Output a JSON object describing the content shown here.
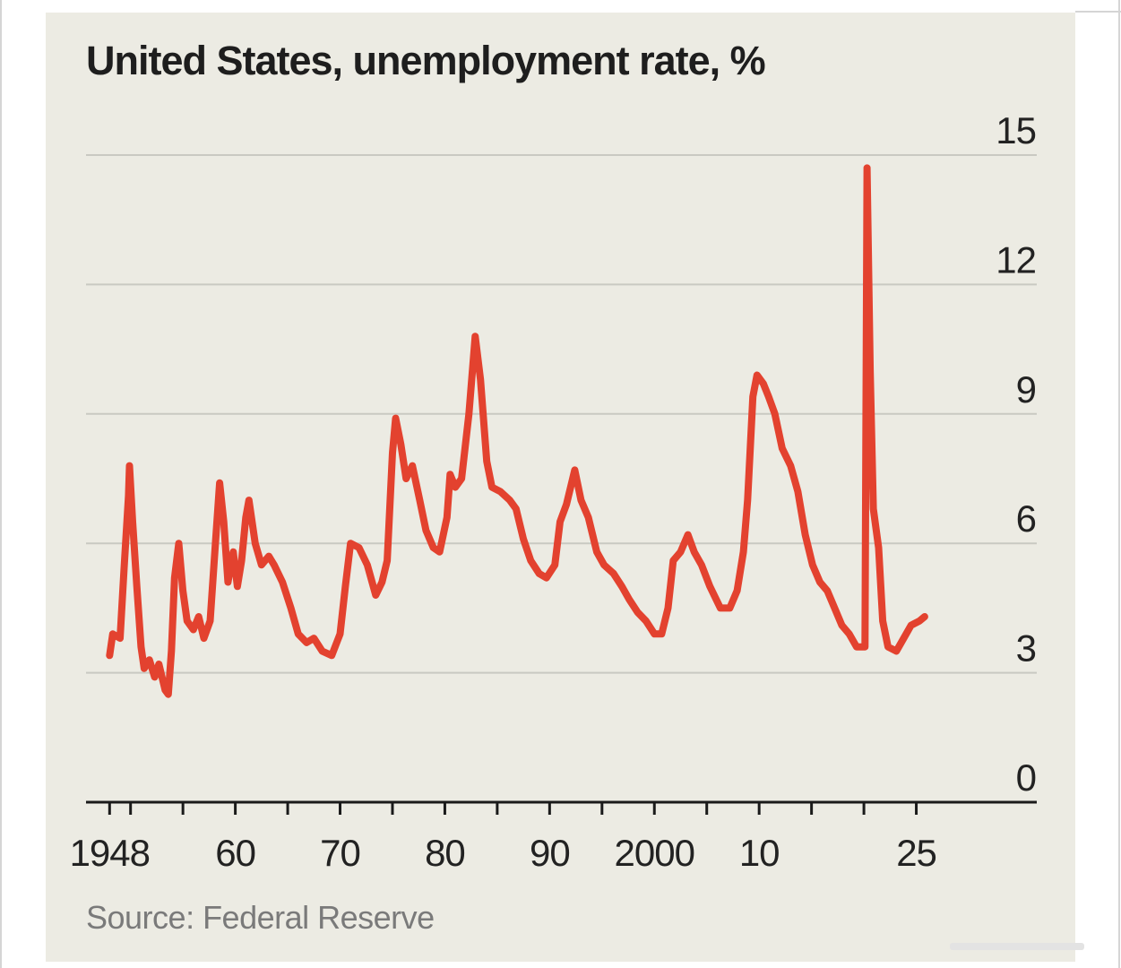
{
  "title": "United States, unemployment rate, %",
  "source": "Source: Federal Reserve",
  "colors": {
    "series": "#e3422f",
    "background": "#ecebe3",
    "grid": "#c9c9c2"
  },
  "chart_data": {
    "type": "line",
    "title": "United States, unemployment rate, %",
    "xlabel": "",
    "ylabel": "%",
    "ylim": [
      0,
      15
    ],
    "xlim": [
      1945.75,
      2036.5
    ],
    "y_ticks": [
      {
        "value": 0,
        "label": "0"
      },
      {
        "value": 3,
        "label": "3"
      },
      {
        "value": 6,
        "label": "6"
      },
      {
        "value": 9,
        "label": "9"
      },
      {
        "value": 12,
        "label": "12"
      },
      {
        "value": 15,
        "label": "15"
      }
    ],
    "x_labels": [
      {
        "value": 1948,
        "label": "1948"
      },
      {
        "value": 1960,
        "label": "60"
      },
      {
        "value": 1970,
        "label": "70"
      },
      {
        "value": 1980,
        "label": "80"
      },
      {
        "value": 1990,
        "label": "90"
      },
      {
        "value": 2000,
        "label": "2000"
      },
      {
        "value": 2010,
        "label": "10"
      },
      {
        "value": 2025,
        "label": "25"
      }
    ],
    "x_ticks": [
      1948,
      1950,
      1955,
      1960,
      1965,
      1970,
      1975,
      1980,
      1985,
      1990,
      1995,
      2000,
      2005,
      2010,
      2015,
      2020,
      2025
    ],
    "legend": "none",
    "series": [
      {
        "name": "Unemployment rate",
        "points": [
          [
            1948.0,
            3.4
          ],
          [
            1948.3,
            3.9
          ],
          [
            1949.0,
            3.8
          ],
          [
            1949.4,
            5.5
          ],
          [
            1949.8,
            7.1
          ],
          [
            1949.9,
            7.8
          ],
          [
            1950.2,
            6.5
          ],
          [
            1950.6,
            5.0
          ],
          [
            1951.0,
            3.6
          ],
          [
            1951.3,
            3.1
          ],
          [
            1951.8,
            3.3
          ],
          [
            1952.3,
            2.9
          ],
          [
            1952.7,
            3.2
          ],
          [
            1953.3,
            2.6
          ],
          [
            1953.6,
            2.5
          ],
          [
            1953.9,
            3.5
          ],
          [
            1954.2,
            5.2
          ],
          [
            1954.6,
            6.0
          ],
          [
            1955.0,
            4.9
          ],
          [
            1955.4,
            4.2
          ],
          [
            1956.0,
            4.0
          ],
          [
            1956.5,
            4.3
          ],
          [
            1957.0,
            3.8
          ],
          [
            1957.6,
            4.2
          ],
          [
            1958.1,
            6.0
          ],
          [
            1958.5,
            7.4
          ],
          [
            1958.9,
            6.5
          ],
          [
            1959.3,
            5.1
          ],
          [
            1959.8,
            5.8
          ],
          [
            1960.2,
            5.0
          ],
          [
            1960.6,
            5.6
          ],
          [
            1961.0,
            6.6
          ],
          [
            1961.3,
            7.0
          ],
          [
            1961.9,
            6.0
          ],
          [
            1962.5,
            5.5
          ],
          [
            1963.2,
            5.7
          ],
          [
            1963.7,
            5.5
          ],
          [
            1964.5,
            5.1
          ],
          [
            1965.3,
            4.5
          ],
          [
            1966.0,
            3.9
          ],
          [
            1966.8,
            3.7
          ],
          [
            1967.5,
            3.8
          ],
          [
            1968.3,
            3.5
          ],
          [
            1969.2,
            3.4
          ],
          [
            1970.0,
            3.9
          ],
          [
            1970.5,
            5.0
          ],
          [
            1971.0,
            6.0
          ],
          [
            1971.8,
            5.9
          ],
          [
            1972.6,
            5.5
          ],
          [
            1973.4,
            4.8
          ],
          [
            1974.0,
            5.1
          ],
          [
            1974.5,
            5.6
          ],
          [
            1975.0,
            8.1
          ],
          [
            1975.3,
            8.9
          ],
          [
            1975.8,
            8.3
          ],
          [
            1976.3,
            7.5
          ],
          [
            1976.9,
            7.8
          ],
          [
            1977.6,
            7.0
          ],
          [
            1978.2,
            6.3
          ],
          [
            1978.9,
            5.9
          ],
          [
            1979.5,
            5.8
          ],
          [
            1980.2,
            6.6
          ],
          [
            1980.5,
            7.6
          ],
          [
            1981.0,
            7.3
          ],
          [
            1981.6,
            7.5
          ],
          [
            1982.3,
            9.0
          ],
          [
            1982.9,
            10.8
          ],
          [
            1983.4,
            9.8
          ],
          [
            1984.0,
            7.9
          ],
          [
            1984.5,
            7.3
          ],
          [
            1985.3,
            7.2
          ],
          [
            1986.2,
            7.0
          ],
          [
            1986.8,
            6.8
          ],
          [
            1987.5,
            6.1
          ],
          [
            1988.2,
            5.6
          ],
          [
            1989.0,
            5.3
          ],
          [
            1989.7,
            5.2
          ],
          [
            1990.5,
            5.5
          ],
          [
            1991.0,
            6.5
          ],
          [
            1991.6,
            6.9
          ],
          [
            1992.4,
            7.7
          ],
          [
            1993.0,
            7.0
          ],
          [
            1993.7,
            6.6
          ],
          [
            1994.5,
            5.8
          ],
          [
            1995.2,
            5.5
          ],
          [
            1996.1,
            5.3
          ],
          [
            1996.9,
            5.0
          ],
          [
            1997.6,
            4.7
          ],
          [
            1998.4,
            4.4
          ],
          [
            1999.2,
            4.2
          ],
          [
            2000.0,
            3.9
          ],
          [
            2000.7,
            3.9
          ],
          [
            2001.3,
            4.5
          ],
          [
            2001.8,
            5.6
          ],
          [
            2002.5,
            5.8
          ],
          [
            2003.2,
            6.2
          ],
          [
            2003.8,
            5.8
          ],
          [
            2004.5,
            5.5
          ],
          [
            2005.3,
            5.0
          ],
          [
            2006.3,
            4.5
          ],
          [
            2007.2,
            4.5
          ],
          [
            2007.9,
            4.9
          ],
          [
            2008.5,
            5.8
          ],
          [
            2008.9,
            7.0
          ],
          [
            2009.4,
            9.4
          ],
          [
            2009.8,
            9.9
          ],
          [
            2010.4,
            9.7
          ],
          [
            2010.9,
            9.4
          ],
          [
            2011.5,
            9.0
          ],
          [
            2012.2,
            8.2
          ],
          [
            2013.0,
            7.8
          ],
          [
            2013.7,
            7.2
          ],
          [
            2014.4,
            6.2
          ],
          [
            2015.1,
            5.5
          ],
          [
            2015.8,
            5.1
          ],
          [
            2016.5,
            4.9
          ],
          [
            2017.2,
            4.5
          ],
          [
            2017.9,
            4.1
          ],
          [
            2018.6,
            3.9
          ],
          [
            2019.3,
            3.6
          ],
          [
            2020.1,
            3.6
          ],
          [
            2020.3,
            14.7
          ],
          [
            2020.6,
            10.0
          ],
          [
            2020.9,
            6.8
          ],
          [
            2021.4,
            5.9
          ],
          [
            2021.8,
            4.2
          ],
          [
            2022.3,
            3.6
          ],
          [
            2023.1,
            3.5
          ],
          [
            2023.8,
            3.8
          ],
          [
            2024.5,
            4.1
          ],
          [
            2025.3,
            4.2
          ],
          [
            2025.8,
            4.3
          ]
        ]
      }
    ]
  }
}
